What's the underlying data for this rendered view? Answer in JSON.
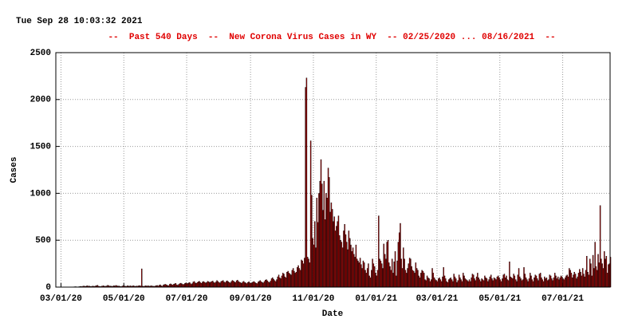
{
  "timestamp": "Tue Sep 28 10:03:32 2021",
  "chart_data": {
    "type": "bar",
    "title": "--  Past 540 Days  --  New Corona Virus Cases in WY  -- 02/25/2020 ... 08/16/2021  --",
    "xlabel": "Date",
    "ylabel": "Cases",
    "color": "#b00000",
    "edgecolor": "#000000",
    "grid": true,
    "ylim": [
      0,
      2500
    ],
    "yticks": [
      0,
      500,
      1000,
      1500,
      2000,
      2500
    ],
    "xlim": [
      "02/25/20",
      "08/16/21"
    ],
    "xticks": [
      "03/01/20",
      "05/01/20",
      "07/01/20",
      "09/01/20",
      "11/01/20",
      "01/01/21",
      "03/01/21",
      "05/01/21",
      "07/01/21"
    ],
    "x": [
      "02/25/20",
      "02/26/20",
      "02/27/20",
      "02/28/20",
      "02/29/20",
      "03/01/20",
      "03/02/20",
      "03/03/20",
      "03/04/20",
      "03/05/20",
      "03/06/20",
      "03/07/20",
      "03/08/20",
      "03/09/20",
      "03/10/20",
      "03/11/20",
      "03/12/20",
      "03/13/20",
      "03/14/20",
      "03/15/20",
      "03/16/20",
      "03/17/20",
      "03/18/20",
      "03/19/20",
      "03/20/20",
      "03/21/20",
      "03/22/20",
      "03/23/20",
      "03/24/20",
      "03/25/20",
      "03/26/20",
      "03/27/20",
      "03/28/20",
      "03/29/20",
      "03/30/20",
      "03/31/20",
      "04/01/20",
      "04/02/20",
      "04/03/20",
      "04/04/20",
      "04/05/20",
      "04/06/20",
      "04/07/20",
      "04/08/20",
      "04/09/20",
      "04/10/20",
      "04/11/20",
      "04/12/20",
      "04/13/20",
      "04/14/20",
      "04/15/20",
      "04/16/20",
      "04/17/20",
      "04/18/20",
      "04/19/20",
      "04/20/20",
      "04/21/20",
      "04/22/20",
      "04/23/20",
      "04/24/20",
      "04/25/20",
      "04/26/20",
      "04/27/20",
      "04/28/20",
      "04/29/20",
      "04/30/20",
      "05/01/20",
      "05/02/20",
      "05/03/20",
      "05/04/20",
      "05/05/20",
      "05/06/20",
      "05/07/20",
      "05/08/20",
      "05/09/20",
      "05/10/20",
      "05/11/20",
      "05/12/20",
      "05/13/20",
      "05/14/20",
      "05/15/20",
      "05/16/20",
      "05/17/20",
      "05/18/20",
      "05/19/20",
      "05/20/20",
      "05/21/20",
      "05/22/20",
      "05/23/20",
      "05/24/20",
      "05/25/20",
      "05/26/20",
      "05/27/20",
      "05/28/20",
      "05/29/20",
      "05/30/20",
      "05/31/20",
      "06/01/20",
      "06/02/20",
      "06/03/20",
      "06/04/20",
      "06/05/20",
      "06/06/20",
      "06/07/20",
      "06/08/20",
      "06/09/20",
      "06/10/20",
      "06/11/20",
      "06/12/20",
      "06/13/20",
      "06/14/20",
      "06/15/20",
      "06/16/20",
      "06/17/20",
      "06/18/20",
      "06/19/20",
      "06/20/20",
      "06/21/20",
      "06/22/20",
      "06/23/20",
      "06/24/20",
      "06/25/20",
      "06/26/20",
      "06/27/20",
      "06/28/20",
      "06/29/20",
      "06/30/20",
      "07/01/20",
      "07/02/20",
      "07/03/20",
      "07/04/20",
      "07/05/20",
      "07/06/20",
      "07/07/20",
      "07/08/20",
      "07/09/20",
      "07/10/20",
      "07/11/20",
      "07/12/20",
      "07/13/20",
      "07/14/20",
      "07/15/20",
      "07/16/20",
      "07/17/20",
      "07/18/20",
      "07/19/20",
      "07/20/20",
      "07/21/20",
      "07/22/20",
      "07/23/20",
      "07/24/20",
      "07/25/20",
      "07/26/20",
      "07/27/20",
      "07/28/20",
      "07/29/20",
      "07/30/20",
      "07/31/20",
      "08/01/20",
      "08/02/20",
      "08/03/20",
      "08/04/20",
      "08/05/20",
      "08/06/20",
      "08/07/20",
      "08/08/20",
      "08/09/20",
      "08/10/20",
      "08/11/20",
      "08/12/20",
      "08/13/20",
      "08/14/20",
      "08/15/20",
      "08/16/20",
      "08/17/20",
      "08/18/20",
      "08/19/20",
      "08/20/20",
      "08/21/20",
      "08/22/20",
      "08/23/20",
      "08/24/20",
      "08/25/20",
      "08/26/20",
      "08/27/20",
      "08/28/20",
      "08/29/20",
      "08/30/20",
      "08/31/20",
      "09/01/20",
      "09/02/20",
      "09/03/20",
      "09/04/20",
      "09/05/20",
      "09/06/20",
      "09/07/20",
      "09/08/20",
      "09/09/20",
      "09/10/20",
      "09/11/20",
      "09/12/20",
      "09/13/20",
      "09/14/20",
      "09/15/20",
      "09/16/20",
      "09/17/20",
      "09/18/20",
      "09/19/20",
      "09/20/20",
      "09/21/20",
      "09/22/20",
      "09/23/20",
      "09/24/20",
      "09/25/20",
      "09/26/20",
      "09/27/20",
      "09/28/20",
      "09/29/20",
      "09/30/20",
      "10/01/20",
      "10/02/20",
      "10/03/20",
      "10/04/20",
      "10/05/20",
      "10/06/20",
      "10/07/20",
      "10/08/20",
      "10/09/20",
      "10/10/20",
      "10/11/20",
      "10/12/20",
      "10/13/20",
      "10/14/20",
      "10/15/20",
      "10/16/20",
      "10/17/20",
      "10/18/20",
      "10/19/20",
      "10/20/20",
      "10/21/20",
      "10/22/20",
      "10/23/20",
      "10/24/20",
      "10/25/20",
      "10/26/20",
      "10/27/20",
      "10/28/20",
      "10/29/20",
      "10/30/20",
      "10/31/20",
      "11/01/20",
      "11/02/20",
      "11/03/20",
      "11/04/20",
      "11/05/20",
      "11/06/20",
      "11/07/20",
      "11/08/20",
      "11/09/20",
      "11/10/20",
      "11/11/20",
      "11/12/20",
      "11/13/20",
      "11/14/20",
      "11/15/20",
      "11/16/20",
      "11/17/20",
      "11/18/20",
      "11/19/20",
      "11/20/20",
      "11/21/20",
      "11/22/20",
      "11/23/20",
      "11/24/20",
      "11/25/20",
      "11/26/20",
      "11/27/20",
      "11/28/20",
      "11/29/20",
      "11/30/20",
      "12/01/20",
      "12/02/20",
      "12/03/20",
      "12/04/20",
      "12/05/20",
      "12/06/20",
      "12/07/20",
      "12/08/20",
      "12/09/20",
      "12/10/20",
      "12/11/20",
      "12/12/20",
      "12/13/20",
      "12/14/20",
      "12/15/20",
      "12/16/20",
      "12/17/20",
      "12/18/20",
      "12/19/20",
      "12/20/20",
      "12/21/20",
      "12/22/20",
      "12/23/20",
      "12/24/20",
      "12/25/20",
      "12/26/20",
      "12/27/20",
      "12/28/20",
      "12/29/20",
      "12/30/20",
      "12/31/20",
      "01/01/21",
      "01/02/21",
      "01/03/21",
      "01/04/21",
      "01/05/21",
      "01/06/21",
      "01/07/21",
      "01/08/21",
      "01/09/21",
      "01/10/21",
      "01/11/21",
      "01/12/21",
      "01/13/21",
      "01/14/21",
      "01/15/21",
      "01/16/21",
      "01/17/21",
      "01/18/21",
      "01/19/21",
      "01/20/21",
      "01/21/21",
      "01/22/21",
      "01/23/21",
      "01/24/21",
      "01/25/21",
      "01/26/21",
      "01/27/21",
      "01/28/21",
      "01/29/21",
      "01/30/21",
      "01/31/21",
      "02/01/21",
      "02/02/21",
      "02/03/21",
      "02/04/21",
      "02/05/21",
      "02/06/21",
      "02/07/21",
      "02/08/21",
      "02/09/21",
      "02/10/21",
      "02/11/21",
      "02/12/21",
      "02/13/21",
      "02/14/21",
      "02/15/21",
      "02/16/21",
      "02/17/21",
      "02/18/21",
      "02/19/21",
      "02/20/21",
      "02/21/21",
      "02/22/21",
      "02/23/21",
      "02/24/21",
      "02/25/21",
      "02/26/21",
      "02/27/21",
      "02/28/21",
      "03/01/21",
      "03/02/21",
      "03/03/21",
      "03/04/21",
      "03/05/21",
      "03/06/21",
      "03/07/21",
      "03/08/21",
      "03/09/21",
      "03/10/21",
      "03/11/21",
      "03/12/21",
      "03/13/21",
      "03/14/21",
      "03/15/21",
      "03/16/21",
      "03/17/21",
      "03/18/21",
      "03/19/21",
      "03/20/21",
      "03/21/21",
      "03/22/21",
      "03/23/21",
      "03/24/21",
      "03/25/21",
      "03/26/21",
      "03/27/21",
      "03/28/21",
      "03/29/21",
      "03/30/21",
      "03/31/21",
      "04/01/21",
      "04/02/21",
      "04/03/21",
      "04/04/21",
      "04/05/21",
      "04/06/21",
      "04/07/21",
      "04/08/21",
      "04/09/21",
      "04/10/21",
      "04/11/21",
      "04/12/21",
      "04/13/21",
      "04/14/21",
      "04/15/21",
      "04/16/21",
      "04/17/21",
      "04/18/21",
      "04/19/21",
      "04/20/21",
      "04/21/21",
      "04/22/21",
      "04/23/21",
      "04/24/21",
      "04/25/21",
      "04/26/21",
      "04/27/21",
      "04/28/21",
      "04/29/21",
      "04/30/21",
      "05/01/21",
      "05/02/21",
      "05/03/21",
      "05/04/21",
      "05/05/21",
      "05/06/21",
      "05/07/21",
      "05/08/21",
      "05/09/21",
      "05/10/21",
      "05/11/21",
      "05/12/21",
      "05/13/21",
      "05/14/21",
      "05/15/21",
      "05/16/21",
      "05/17/21",
      "05/18/21",
      "05/19/21",
      "05/20/21",
      "05/21/21",
      "05/22/21",
      "05/23/21",
      "05/24/21",
      "05/25/21",
      "05/26/21",
      "05/27/21",
      "05/28/21",
      "05/29/21",
      "05/30/21",
      "05/31/21",
      "06/01/21",
      "06/02/21",
      "06/03/21",
      "06/04/21",
      "06/05/21",
      "06/06/21",
      "06/07/21",
      "06/08/21",
      "06/09/21",
      "06/10/21",
      "06/11/21",
      "06/12/21",
      "06/13/21",
      "06/14/21",
      "06/15/21",
      "06/16/21",
      "06/17/21",
      "06/18/21",
      "06/19/21",
      "06/20/21",
      "06/21/21",
      "06/22/21",
      "06/23/21",
      "06/24/21",
      "06/25/21",
      "06/26/21",
      "06/27/21",
      "06/28/21",
      "06/29/21",
      "06/30/21",
      "07/01/21",
      "07/02/21",
      "07/03/21",
      "07/04/21",
      "07/05/21",
      "07/06/21",
      "07/07/21",
      "07/08/21",
      "07/09/21",
      "07/10/21",
      "07/11/21",
      "07/12/21",
      "07/13/21",
      "07/14/21",
      "07/15/21",
      "07/16/21",
      "07/17/21",
      "07/18/21",
      "07/19/21",
      "07/20/21",
      "07/21/21",
      "07/22/21",
      "07/23/21",
      "07/24/21",
      "07/25/21",
      "07/26/21",
      "07/27/21",
      "07/28/21",
      "07/29/21",
      "07/30/21",
      "07/31/21",
      "08/01/21",
      "08/02/21",
      "08/03/21",
      "08/04/21",
      "08/05/21",
      "08/06/21",
      "08/07/21",
      "08/08/21",
      "08/09/21",
      "08/10/21",
      "08/11/21",
      "08/12/21",
      "08/13/21",
      "08/14/21",
      "08/15/21",
      "08/16/21"
    ],
    "values": [
      0,
      0,
      0,
      0,
      0,
      0,
      0,
      0,
      0,
      0,
      0,
      0,
      0,
      0,
      1,
      0,
      2,
      3,
      4,
      5,
      2,
      3,
      4,
      6,
      8,
      5,
      10,
      12,
      8,
      9,
      15,
      10,
      12,
      8,
      6,
      10,
      10,
      8,
      12,
      15,
      20,
      10,
      8,
      5,
      10,
      12,
      15,
      8,
      10,
      12,
      20,
      15,
      10,
      12,
      8,
      10,
      15,
      12,
      18,
      14,
      10,
      12,
      8,
      5,
      10,
      15,
      12,
      10,
      8,
      15,
      12,
      10,
      14,
      9,
      12,
      15,
      10,
      8,
      12,
      10,
      14,
      16,
      12,
      195,
      10,
      8,
      12,
      15,
      10,
      14,
      12,
      9,
      15,
      12,
      10,
      8,
      12,
      15,
      18,
      12,
      20,
      25,
      14,
      10,
      22,
      28,
      30,
      25,
      18,
      15,
      30,
      35,
      28,
      22,
      30,
      35,
      40,
      25,
      20,
      30,
      38,
      42,
      35,
      28,
      30,
      40,
      45,
      35,
      40,
      50,
      45,
      30,
      38,
      55,
      60,
      45,
      40,
      50,
      58,
      62,
      48,
      40,
      55,
      60,
      52,
      45,
      50,
      62,
      58,
      48,
      55,
      60,
      65,
      50,
      45,
      55,
      70,
      60,
      50,
      45,
      60,
      65,
      70,
      55,
      48,
      62,
      68,
      58,
      50,
      45,
      60,
      72,
      65,
      55,
      50,
      68,
      75,
      60,
      52,
      48,
      40,
      55,
      62,
      50,
      45,
      38,
      50,
      58,
      45,
      40,
      48,
      55,
      60,
      50,
      42,
      38,
      55,
      62,
      70,
      58,
      50,
      45,
      60,
      75,
      80,
      68,
      55,
      50,
      65,
      90,
      100,
      85,
      70,
      60,
      80,
      110,
      130,
      100,
      90,
      120,
      150,
      140,
      110,
      100,
      160,
      170,
      150,
      140,
      130,
      180,
      200,
      170,
      150,
      160,
      210,
      230,
      200,
      180,
      290,
      280,
      250,
      310,
      2130,
      2230,
      320,
      300,
      260,
      1560,
      980,
      520,
      450,
      700,
      420,
      950,
      690,
      1000,
      1130,
      1360,
      1100,
      820,
      1130,
      720,
      1000,
      950,
      1270,
      1170,
      800,
      900,
      830,
      700,
      750,
      600,
      650,
      700,
      760,
      550,
      500,
      480,
      420,
      600,
      670,
      560,
      480,
      400,
      600,
      520,
      450,
      380,
      420,
      350,
      320,
      450,
      300,
      280,
      260,
      310,
      240,
      200,
      280,
      260,
      180,
      150,
      200,
      250,
      120,
      100,
      180,
      300,
      250,
      220,
      150,
      120,
      180,
      760,
      300,
      280,
      250,
      200,
      460,
      350,
      300,
      480,
      500,
      260,
      220,
      180,
      300,
      150,
      270,
      380,
      120,
      280,
      480,
      580,
      680,
      300,
      200,
      420,
      300,
      180,
      150,
      200,
      250,
      310,
      300,
      220,
      180,
      170,
      150,
      260,
      200,
      180,
      120,
      100,
      150,
      180,
      170,
      150,
      80,
      70,
      120,
      100,
      90,
      60,
      80,
      200,
      150,
      100,
      80,
      70,
      60,
      90,
      100,
      80,
      60,
      110,
      210,
      120,
      90,
      60,
      50,
      80,
      90,
      100,
      80,
      60,
      140,
      110,
      90,
      50,
      70,
      130,
      100,
      80,
      60,
      150,
      120,
      90,
      80,
      70,
      60,
      80,
      60,
      100,
      140,
      130,
      90,
      70,
      110,
      150,
      100,
      80,
      60,
      90,
      80,
      70,
      120,
      100,
      90,
      60,
      80,
      110,
      130,
      90,
      70,
      100,
      90,
      80,
      110,
      120,
      100,
      80,
      60,
      90,
      130,
      140,
      100,
      120,
      80,
      70,
      270,
      110,
      100,
      90,
      140,
      120,
      80,
      60,
      130,
      200,
      110,
      90,
      70,
      80,
      210,
      140,
      100,
      80,
      60,
      90,
      150,
      120,
      80,
      60,
      100,
      130,
      120,
      90,
      70,
      140,
      150,
      100,
      80,
      60,
      110,
      90,
      100,
      70,
      80,
      130,
      120,
      90,
      70,
      100,
      150,
      120,
      90,
      110,
      80,
      100,
      120,
      110,
      90,
      80,
      100,
      120,
      130,
      110,
      200,
      180,
      150,
      100,
      130,
      160,
      140,
      90,
      110,
      150,
      190,
      160,
      120,
      200,
      140,
      110,
      180,
      330,
      160,
      130,
      300,
      250,
      120,
      340,
      200,
      480,
      220,
      180,
      350,
      260,
      870,
      300,
      250,
      200,
      380,
      300,
      330,
      150,
      240,
      250,
      320
    ]
  }
}
